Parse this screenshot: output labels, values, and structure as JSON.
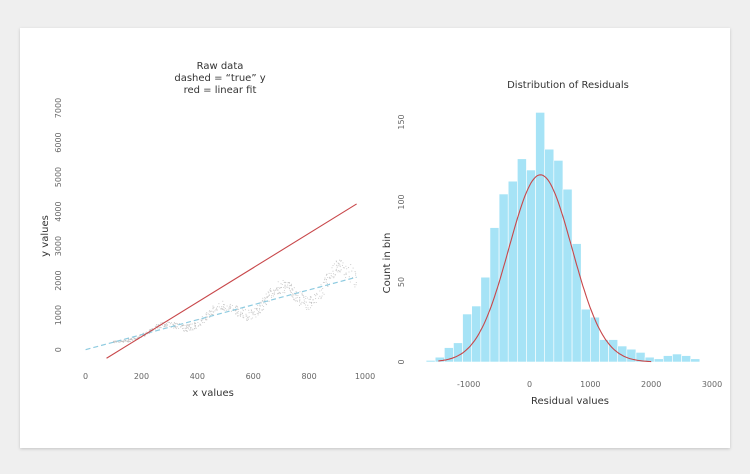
{
  "chart_data": [
    {
      "type": "scatter",
      "title_lines": [
        "Raw data",
        "dashed = “true” y",
        "red = linear fit"
      ],
      "xlabel": "x values",
      "ylabel": "y values",
      "xlim": [
        -20,
        1000
      ],
      "ylim": [
        -300,
        7000
      ],
      "x_ticks": [
        0,
        200,
        400,
        600,
        800,
        1000
      ],
      "y_ticks": [
        0,
        1000,
        2000,
        3000,
        4000,
        5000,
        6000,
        7000
      ],
      "true_line": {
        "x": [
          0,
          970
        ],
        "y": [
          0,
          2100
        ],
        "style": "dashed",
        "color": "#8ecbe0"
      },
      "fit_line": {
        "x": [
          75,
          970
        ],
        "y": [
          -250,
          4220
        ],
        "color": "#c8474a"
      },
      "scatter_color": "#bdbdbd",
      "grid": false
    },
    {
      "type": "bar",
      "title": "Distribution of Residuals",
      "xlabel": "Residual values",
      "ylabel": "Count in bin",
      "xlim": [
        -1800,
        3000
      ],
      "ylim": [
        0,
        165
      ],
      "x_ticks": [
        -1000,
        0,
        1000,
        2000,
        3000
      ],
      "y_ticks": [
        0,
        50,
        100,
        150
      ],
      "bin_edges": [
        -1700,
        -1550,
        -1400,
        -1250,
        -1100,
        -950,
        -800,
        -650,
        -500,
        -350,
        -200,
        -50,
        100,
        250,
        400,
        550,
        700,
        850,
        1000,
        1150,
        1300,
        1450,
        1600,
        1750,
        1900,
        2050,
        2200,
        2350,
        2500,
        2650,
        2800
      ],
      "counts": [
        1,
        3,
        9,
        12,
        30,
        35,
        53,
        84,
        105,
        113,
        127,
        120,
        156,
        133,
        126,
        108,
        74,
        33,
        28,
        14,
        14,
        10,
        8,
        6,
        3,
        2,
        4,
        5,
        4,
        2
      ],
      "bar_color": "#a6e3f6",
      "density_curve": {
        "mean": 180,
        "sd": 520,
        "peak": 117,
        "color": "#c8474a"
      },
      "grid": false
    }
  ]
}
